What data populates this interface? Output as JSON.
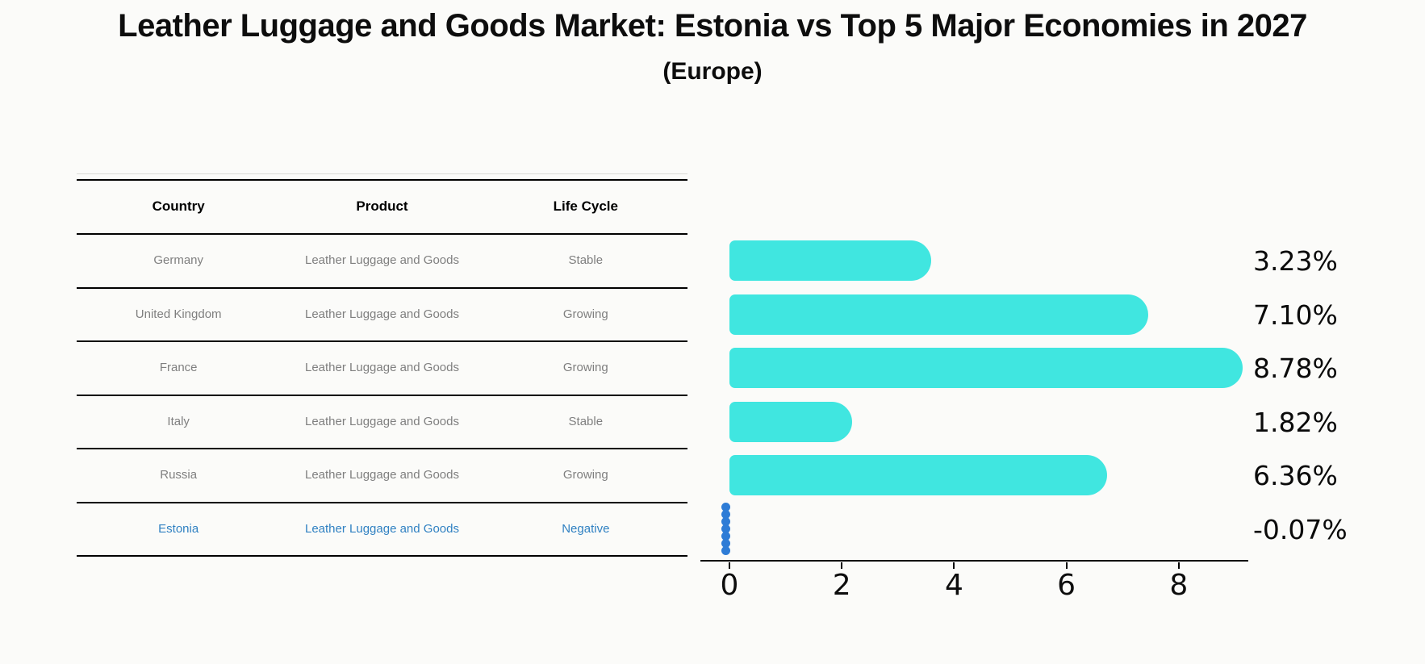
{
  "header": {
    "title": "Leather Luggage and Goods Market: Estonia vs Top 5 Major Economies in 2027",
    "subtitle": "(Europe)"
  },
  "table": {
    "columns": [
      "Country",
      "Product",
      "Life Cycle"
    ],
    "rows": [
      {
        "country": "Germany",
        "product": "Leather Luggage and Goods",
        "life_cycle": "Stable",
        "highlighted": false
      },
      {
        "country": "United Kingdom",
        "product": "Leather Luggage and Goods",
        "life_cycle": "Growing",
        "highlighted": false
      },
      {
        "country": "France",
        "product": "Leather Luggage and Goods",
        "life_cycle": "Growing",
        "highlighted": false
      },
      {
        "country": "Italy",
        "product": "Leather Luggage and Goods",
        "life_cycle": "Stable",
        "highlighted": false
      },
      {
        "country": "Russia",
        "product": "Leather Luggage and Goods",
        "life_cycle": "Growing",
        "highlighted": false
      },
      {
        "country": "Estonia",
        "product": "Leather Luggage and Goods",
        "life_cycle": "Negative",
        "highlighted": true
      }
    ]
  },
  "chart_data": {
    "type": "bar",
    "orientation": "horizontal",
    "title": "Leather Luggage and Goods Market: Estonia vs Top 5 Major Economies in 2027",
    "subtitle": "(Europe)",
    "categories": [
      "Germany",
      "United Kingdom",
      "France",
      "Italy",
      "Russia",
      "Estonia"
    ],
    "values": [
      3.23,
      7.1,
      8.78,
      1.82,
      6.36,
      -0.07
    ],
    "value_labels": [
      "3.23%",
      "7.10%",
      "8.78%",
      "1.82%",
      "6.36%",
      "-0.07%"
    ],
    "xlabel": "",
    "ylabel": "",
    "xticks": [
      0,
      2,
      4,
      6,
      8
    ],
    "xlim": [
      0,
      9.2
    ],
    "grid": false,
    "legend": "none",
    "bar_color": "#40E6E0",
    "negative_marker_color": "#2E7CD6"
  },
  "colors": {
    "accent_cyan": "#40E6E0",
    "highlight_blue": "#3081C2",
    "row_text_gray": "#7F7F7F",
    "axis_black": "#000000",
    "background": "#FBFBF9"
  }
}
